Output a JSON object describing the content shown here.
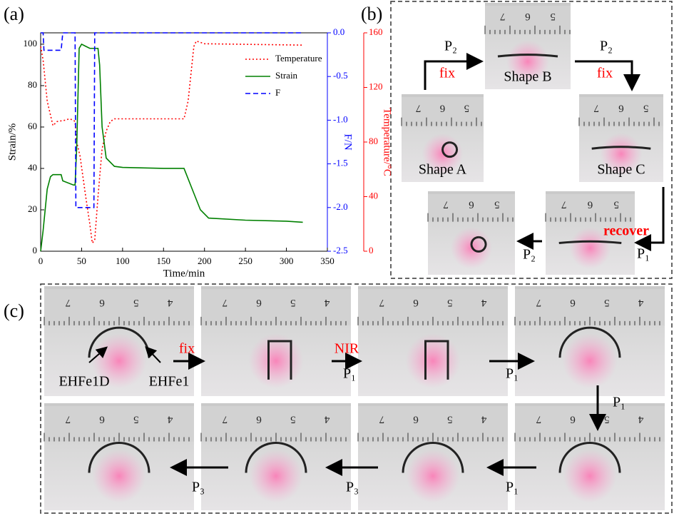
{
  "panel_labels": [
    "(a)",
    "(b)",
    "(c)"
  ],
  "chart_data": {
    "type": "line",
    "xlabel": "Time/min",
    "ylabel": "Strain/%",
    "y2label": "F/N",
    "y3label": "Temperature/°C",
    "xlim": [
      0,
      350
    ],
    "xticks": [
      0,
      50,
      100,
      150,
      200,
      250,
      300,
      350
    ],
    "ylim": [
      0,
      105.5
    ],
    "yticks": [
      0,
      20,
      40,
      60,
      80,
      100
    ],
    "y2lim": [
      -2.5,
      0
    ],
    "y2ticks": [
      {
        "value": 0,
        "label": "0.0"
      },
      -0.5,
      {
        "value": -1,
        "label": "-1.0"
      },
      -1.5,
      {
        "value": -2,
        "label": "-2.0"
      },
      -2.5
    ],
    "y3lim": [
      0,
      160
    ],
    "y3ticks": [
      0,
      40,
      80,
      120,
      160
    ],
    "legend": "upper right",
    "series": [
      {
        "name": "Temperature",
        "color": "#ff0000",
        "line_style": "dotted",
        "axis": "y3",
        "x": [
          0,
          3,
          8,
          15,
          20,
          30,
          35,
          40,
          42,
          44,
          48,
          55,
          60,
          63,
          66,
          70,
          75,
          80,
          85,
          90,
          120,
          175,
          180,
          187,
          190,
          200,
          320
        ],
        "values": [
          150,
          140,
          110,
          92,
          95,
          96,
          97,
          96,
          95,
          80,
          70,
          40,
          20,
          6,
          8,
          40,
          75,
          88,
          95,
          97,
          97,
          97,
          110,
          150,
          154,
          152,
          151
        ]
      },
      {
        "name": "Strain",
        "color": "#008000",
        "line_style": "solid",
        "axis": "y",
        "x": [
          0,
          3,
          8,
          12,
          15,
          25,
          27,
          40,
          42,
          44,
          47,
          50,
          55,
          60,
          70,
          72,
          75,
          80,
          90,
          100,
          150,
          175,
          185,
          195,
          205,
          250,
          300,
          320
        ],
        "values": [
          0,
          10,
          30,
          36,
          37,
          37,
          34,
          32,
          32,
          50,
          98,
          100,
          99,
          98,
          98,
          90,
          60,
          45,
          41,
          40.5,
          40,
          40,
          30,
          20,
          16,
          15,
          14.5,
          14
        ]
      },
      {
        "name": "F",
        "color": "#0000ff",
        "line_style": "dashed",
        "axis": "y2",
        "x": [
          0,
          3,
          4,
          25,
          27,
          42,
          43,
          65,
          66,
          320
        ],
        "values": [
          0,
          0,
          -0.2,
          -0.2,
          0,
          0,
          -2,
          -2,
          0,
          0
        ]
      }
    ]
  },
  "panel_b": {
    "photos": [
      {
        "label": "Shape B",
        "ruler": [
          "7",
          "6",
          "5"
        ]
      },
      {
        "label": "Shape A",
        "ruler": [
          "7",
          "6",
          "5"
        ]
      },
      {
        "label": "Shape C",
        "ruler": [
          "7",
          "6",
          "5"
        ]
      },
      {
        "ruler": [
          "7",
          "6",
          "5"
        ]
      },
      {
        "ruler": [
          "7",
          "6",
          "5"
        ]
      }
    ],
    "annotations": [
      "P₂",
      "fix",
      "P₂",
      "fix",
      "recover",
      "P₁",
      "P₂"
    ]
  },
  "panel_c": {
    "photos": [
      {
        "ruler": [
          "7",
          "6",
          "5",
          "4"
        ]
      },
      {
        "ruler": [
          "7",
          "6",
          "5",
          "4"
        ]
      },
      {
        "ruler": [
          "7",
          "6",
          "5",
          "4"
        ]
      },
      {
        "ruler": [
          "7",
          "6",
          "5",
          "4"
        ]
      },
      {
        "ruler": [
          "7",
          "6",
          "5",
          "4"
        ]
      },
      {
        "ruler": [
          "7",
          "6",
          "5",
          "4"
        ]
      },
      {
        "ruler": [
          "7",
          "6",
          "5",
          "4"
        ]
      },
      {
        "ruler": [
          "7",
          "6",
          "5",
          "4"
        ]
      }
    ],
    "annotations": [
      "EHFe1D",
      "EHFe1",
      "fix",
      "NIR",
      "P₁",
      "P₁",
      "P₁",
      "P₃",
      "P₃",
      "P₁"
    ]
  }
}
